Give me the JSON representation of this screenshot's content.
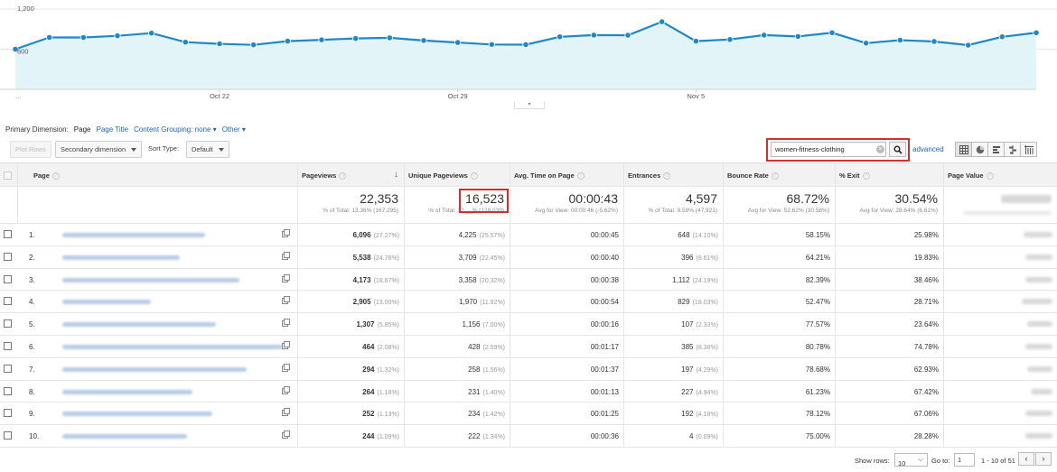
{
  "chart_data": {
    "type": "area",
    "x": [
      "Oct 16",
      "Oct 17",
      "Oct 18",
      "Oct 19",
      "Oct 20",
      "Oct 21",
      "Oct 22",
      "Oct 23",
      "Oct 24",
      "Oct 25",
      "Oct 26",
      "Oct 27",
      "Oct 28",
      "Oct 29",
      "Oct 30",
      "Oct 31",
      "Nov 1",
      "Nov 2",
      "Nov 3",
      "Nov 4",
      "Nov 5",
      "Nov 6",
      "Nov 7",
      "Nov 8",
      "Nov 9",
      "Nov 10",
      "Nov 11",
      "Nov 12",
      "Nov 13",
      "Nov 14",
      "Nov 15"
    ],
    "series": [
      {
        "values": [
          600,
          775,
          775,
          800,
          840,
          705,
          680,
          665,
          720,
          740,
          760,
          770,
          730,
          700,
          670,
          668,
          785,
          810,
          808,
          1010,
          720,
          745,
          810,
          790,
          845,
          690,
          735,
          715,
          660,
          785,
          845
        ]
      }
    ],
    "x_tick_labels": [
      "Oct 22",
      "Oct 29",
      "Nov 5"
    ],
    "x_first_label": "...",
    "y_tick_labels": [
      "1,200",
      "600"
    ],
    "ylim": [
      0,
      1200
    ],
    "line_color": "#1e88c8",
    "fill_color": "#e3f4f9"
  },
  "dimension_bar": {
    "label": "Primary Dimension:",
    "active": "Page",
    "options": [
      "Page Title",
      "Content Grouping: none ▾"
    ],
    "other": "Other ▾"
  },
  "toolbar": {
    "plot_rows": "Plot Rows",
    "secondary_dimension": "Secondary dimension",
    "sort_type_label": "Sort Type:",
    "sort_type_value": "Default",
    "search_value": "women-fitness-clothing",
    "search_clear": "×",
    "advanced": "advanced"
  },
  "icons": {
    "search": "search-icon",
    "view_table": "table-view-icon",
    "view_pie": "pie-view-icon",
    "view_performance": "performance-view-icon",
    "view_comparison": "comparison-view-icon",
    "view_pivot": "pivot-view-icon",
    "row_link": "open-link-icon"
  },
  "table": {
    "headers": [
      "Page",
      "Pageviews",
      "Unique Pageviews",
      "Avg. Time on Page",
      "Entrances",
      "Bounce Rate",
      "% Exit",
      "Page Value"
    ],
    "help": "?",
    "sort_arrow": "↓",
    "totals": {
      "pageviews": {
        "value": "22,353",
        "sub": "% of Total: 13.36% (167,295)"
      },
      "unique": {
        "value": "16,523",
        "sub": "% of Total: 12.__% (128,039)"
      },
      "avg_time": {
        "value": "00:00:43",
        "sub": "Avg for View: 00:00:46 (-5.62%)"
      },
      "entrances": {
        "value": "4,597",
        "sub": "% of Total: 9.59% (47,921)"
      },
      "bounce": {
        "value": "68.72%",
        "sub": "Avg for View: 52.62% (30.58%)"
      },
      "exit": {
        "value": "30.54%",
        "sub": "Avg for View: 28.64% (6.61%)"
      }
    },
    "rows": [
      {
        "num": "1.",
        "pv": "6,096",
        "pv_pct": "(27.27%)",
        "up": "4,225",
        "up_pct": "(25.57%)",
        "time": "00:00:45",
        "ent": "648",
        "ent_pct": "(14.10%)",
        "bounce": "58.15%",
        "exit": "25.98%"
      },
      {
        "num": "2.",
        "pv": "5,538",
        "pv_pct": "(24.78%)",
        "up": "3,709",
        "up_pct": "(22.45%)",
        "time": "00:00:40",
        "ent": "396",
        "ent_pct": "(8.61%)",
        "bounce": "64.21%",
        "exit": "19.83%"
      },
      {
        "num": "3.",
        "pv": "4,173",
        "pv_pct": "(18.67%)",
        "up": "3,358",
        "up_pct": "(20.32%)",
        "time": "00:00:38",
        "ent": "1,112",
        "ent_pct": "(24.19%)",
        "bounce": "82.39%",
        "exit": "38.46%"
      },
      {
        "num": "4.",
        "pv": "2,905",
        "pv_pct": "(13.00%)",
        "up": "1,970",
        "up_pct": "(11.92%)",
        "time": "00:00:54",
        "ent": "829",
        "ent_pct": "(18.03%)",
        "bounce": "52.47%",
        "exit": "28.71%"
      },
      {
        "num": "5.",
        "pv": "1,307",
        "pv_pct": "(5.85%)",
        "up": "1,156",
        "up_pct": "(7.00%)",
        "time": "00:00:16",
        "ent": "107",
        "ent_pct": "(2.33%)",
        "bounce": "77.57%",
        "exit": "23.64%"
      },
      {
        "num": "6.",
        "pv": "464",
        "pv_pct": "(2.08%)",
        "up": "428",
        "up_pct": "(2.59%)",
        "time": "00:01:17",
        "ent": "385",
        "ent_pct": "(8.38%)",
        "bounce": "80.78%",
        "exit": "74.78%"
      },
      {
        "num": "7.",
        "pv": "294",
        "pv_pct": "(1.32%)",
        "up": "258",
        "up_pct": "(1.56%)",
        "time": "00:01:37",
        "ent": "197",
        "ent_pct": "(4.29%)",
        "bounce": "78.68%",
        "exit": "62.93%"
      },
      {
        "num": "8.",
        "pv": "264",
        "pv_pct": "(1.18%)",
        "up": "231",
        "up_pct": "(1.40%)",
        "time": "00:01:13",
        "ent": "227",
        "ent_pct": "(4.94%)",
        "bounce": "61.23%",
        "exit": "67.42%"
      },
      {
        "num": "9.",
        "pv": "252",
        "pv_pct": "(1.13%)",
        "up": "234",
        "up_pct": "(1.42%)",
        "time": "00:01:25",
        "ent": "192",
        "ent_pct": "(4.18%)",
        "bounce": "78.12%",
        "exit": "67.06%"
      },
      {
        "num": "10.",
        "pv": "244",
        "pv_pct": "(1.09%)",
        "up": "222",
        "up_pct": "(1.34%)",
        "time": "00:00:36",
        "ent": "4",
        "ent_pct": "(0.09%)",
        "bounce": "75.00%",
        "exit": "28.28%"
      }
    ]
  },
  "pager": {
    "show_rows_label": "Show rows:",
    "show_rows_value": "10",
    "goto_label": "Go to:",
    "goto_value": "1",
    "range": "1 - 10 of 51",
    "prev": "‹",
    "next": "›"
  },
  "colors": {
    "link": "#1a65c6",
    "highlight": "#d32f2f"
  }
}
